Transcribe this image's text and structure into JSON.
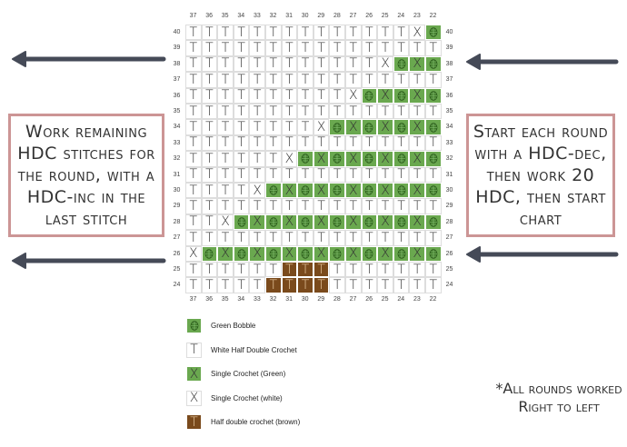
{
  "chart": {
    "columns": [
      37,
      36,
      35,
      34,
      33,
      32,
      31,
      30,
      29,
      28,
      27,
      26,
      25,
      24,
      23,
      22
    ],
    "rows": [
      {
        "round": 40,
        "stitches": "TTTTTTTTTTTTTTXB"
      },
      {
        "round": 39,
        "stitches": "TTTTTTTTTTTTTTTT"
      },
      {
        "round": 38,
        "stitches": "TTTTTTTTTTTTXBGB"
      },
      {
        "round": 37,
        "stitches": "TTTTTTTTTTTTTTTT"
      },
      {
        "round": 36,
        "stitches": "TTTTTTTTTTXBGBGB"
      },
      {
        "round": 35,
        "stitches": "TTTTTTTTTTTTTTTT"
      },
      {
        "round": 34,
        "stitches": "TTTTTTTTXBGBGBGB"
      },
      {
        "round": 33,
        "stitches": "TTTTTTTTTTTTTTTT"
      },
      {
        "round": 32,
        "stitches": "TTTTTTXBGBGBGBGB"
      },
      {
        "round": 31,
        "stitches": "TTTTTTTTTTTTTTTT"
      },
      {
        "round": 30,
        "stitches": "TTTTXBGBGBGBGBGB"
      },
      {
        "round": 29,
        "stitches": "TTTTTTTTTTTTTTTT"
      },
      {
        "round": 28,
        "stitches": "TTXBGBGBGBGBGBGB"
      },
      {
        "round": 27,
        "stitches": "TTTTTTTTTTTTTTTT"
      },
      {
        "round": 26,
        "stitches": "XBGBGBGBGBGBGBGB"
      },
      {
        "round": 25,
        "stitches": "TTTTTTHHHTTTTTTT"
      },
      {
        "round": 24,
        "stitches": "TTTTTHHHHTTTTTTT"
      }
    ],
    "stitch_key": {
      "B": {
        "label": "Green Bobble",
        "symbol": "bobble-icon",
        "color": "#6aa84f"
      },
      "T": {
        "label": "White Half Double Crochet",
        "symbol": "T",
        "color": "#ffffff"
      },
      "G": {
        "label": "Single Crochet (Green)",
        "symbol": "X",
        "color": "#6aa84f"
      },
      "X": {
        "label": "Single Crochet (white)",
        "symbol": "X",
        "color": "#ffffff"
      },
      "H": {
        "label": "Half double crochet (brown)",
        "symbol": "T",
        "color": "#7a4a1c"
      }
    }
  },
  "legend": [
    {
      "code": "B",
      "label": "Green Bobble"
    },
    {
      "code": "T",
      "label": "White Half Double Crochet"
    },
    {
      "code": "G",
      "label": "Single Crochet (Green)"
    },
    {
      "code": "X",
      "label": "Single Crochet (white)"
    },
    {
      "code": "H",
      "label": "Half double crochet (brown)"
    }
  ],
  "notes": {
    "left": "Work remaining HDC stitches for the round, with a HDC-inc in the last stitch",
    "right": "Start each round with a HDC-dec, then work 20 HDC, then start chart",
    "footnote": "*All rounds worked Right to left"
  },
  "colors": {
    "box_border": "#cc9595",
    "arrow": "#454a57",
    "green": "#6aa84f",
    "brown": "#7a4a1c"
  }
}
